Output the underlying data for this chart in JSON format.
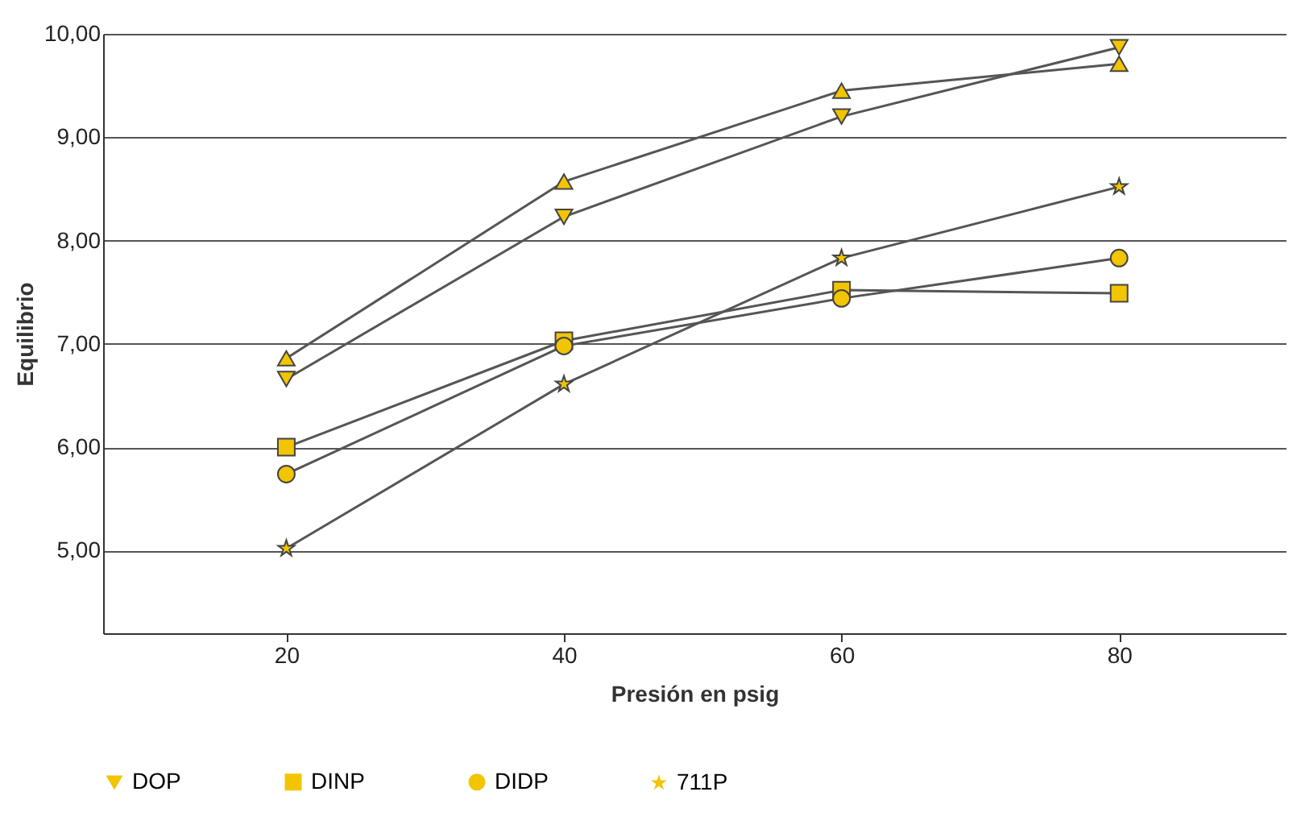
{
  "chart_data": {
    "type": "line",
    "xlabel": "Presión en psig",
    "ylabel": "Equilibrio",
    "x": [
      20,
      40,
      60,
      80
    ],
    "series": [
      {
        "name": "DOP",
        "color": "#f2c500",
        "marker": "triangle-down",
        "values": [
          6.66,
          8.23,
          9.2,
          9.87
        ]
      },
      {
        "color": "#f2c500",
        "marker": "triangle",
        "values": [
          6.86,
          8.57,
          9.45,
          9.71
        ]
      },
      {
        "name": "DINP",
        "color": "#f2c500",
        "marker": "square",
        "values": [
          6.0,
          7.03,
          7.52,
          7.49
        ]
      },
      {
        "name": "DIDP",
        "color": "#f2c500",
        "marker": "circle",
        "values": [
          5.74,
          6.98,
          7.44,
          7.83
        ]
      },
      {
        "name": "711P",
        "color": "#f2c500",
        "marker": "star",
        "values": [
          5.02,
          6.61,
          7.83,
          8.52
        ]
      }
    ],
    "xlim": [
      6.8,
      92
    ],
    "xticks": [
      20,
      40,
      60,
      80
    ],
    "ylim": [
      4.2,
      10
    ],
    "yticks": [
      {
        "value": 5,
        "label": "5,00"
      },
      {
        "value": 6,
        "label": "6,00"
      },
      {
        "value": 7,
        "label": "7,00"
      },
      {
        "value": 8,
        "label": "8,00"
      },
      {
        "value": 9,
        "label": "9,00"
      },
      {
        "value": 10,
        "label": "10,00"
      }
    ],
    "grid": "y",
    "legend": "bottom",
    "line_style": "solid"
  }
}
